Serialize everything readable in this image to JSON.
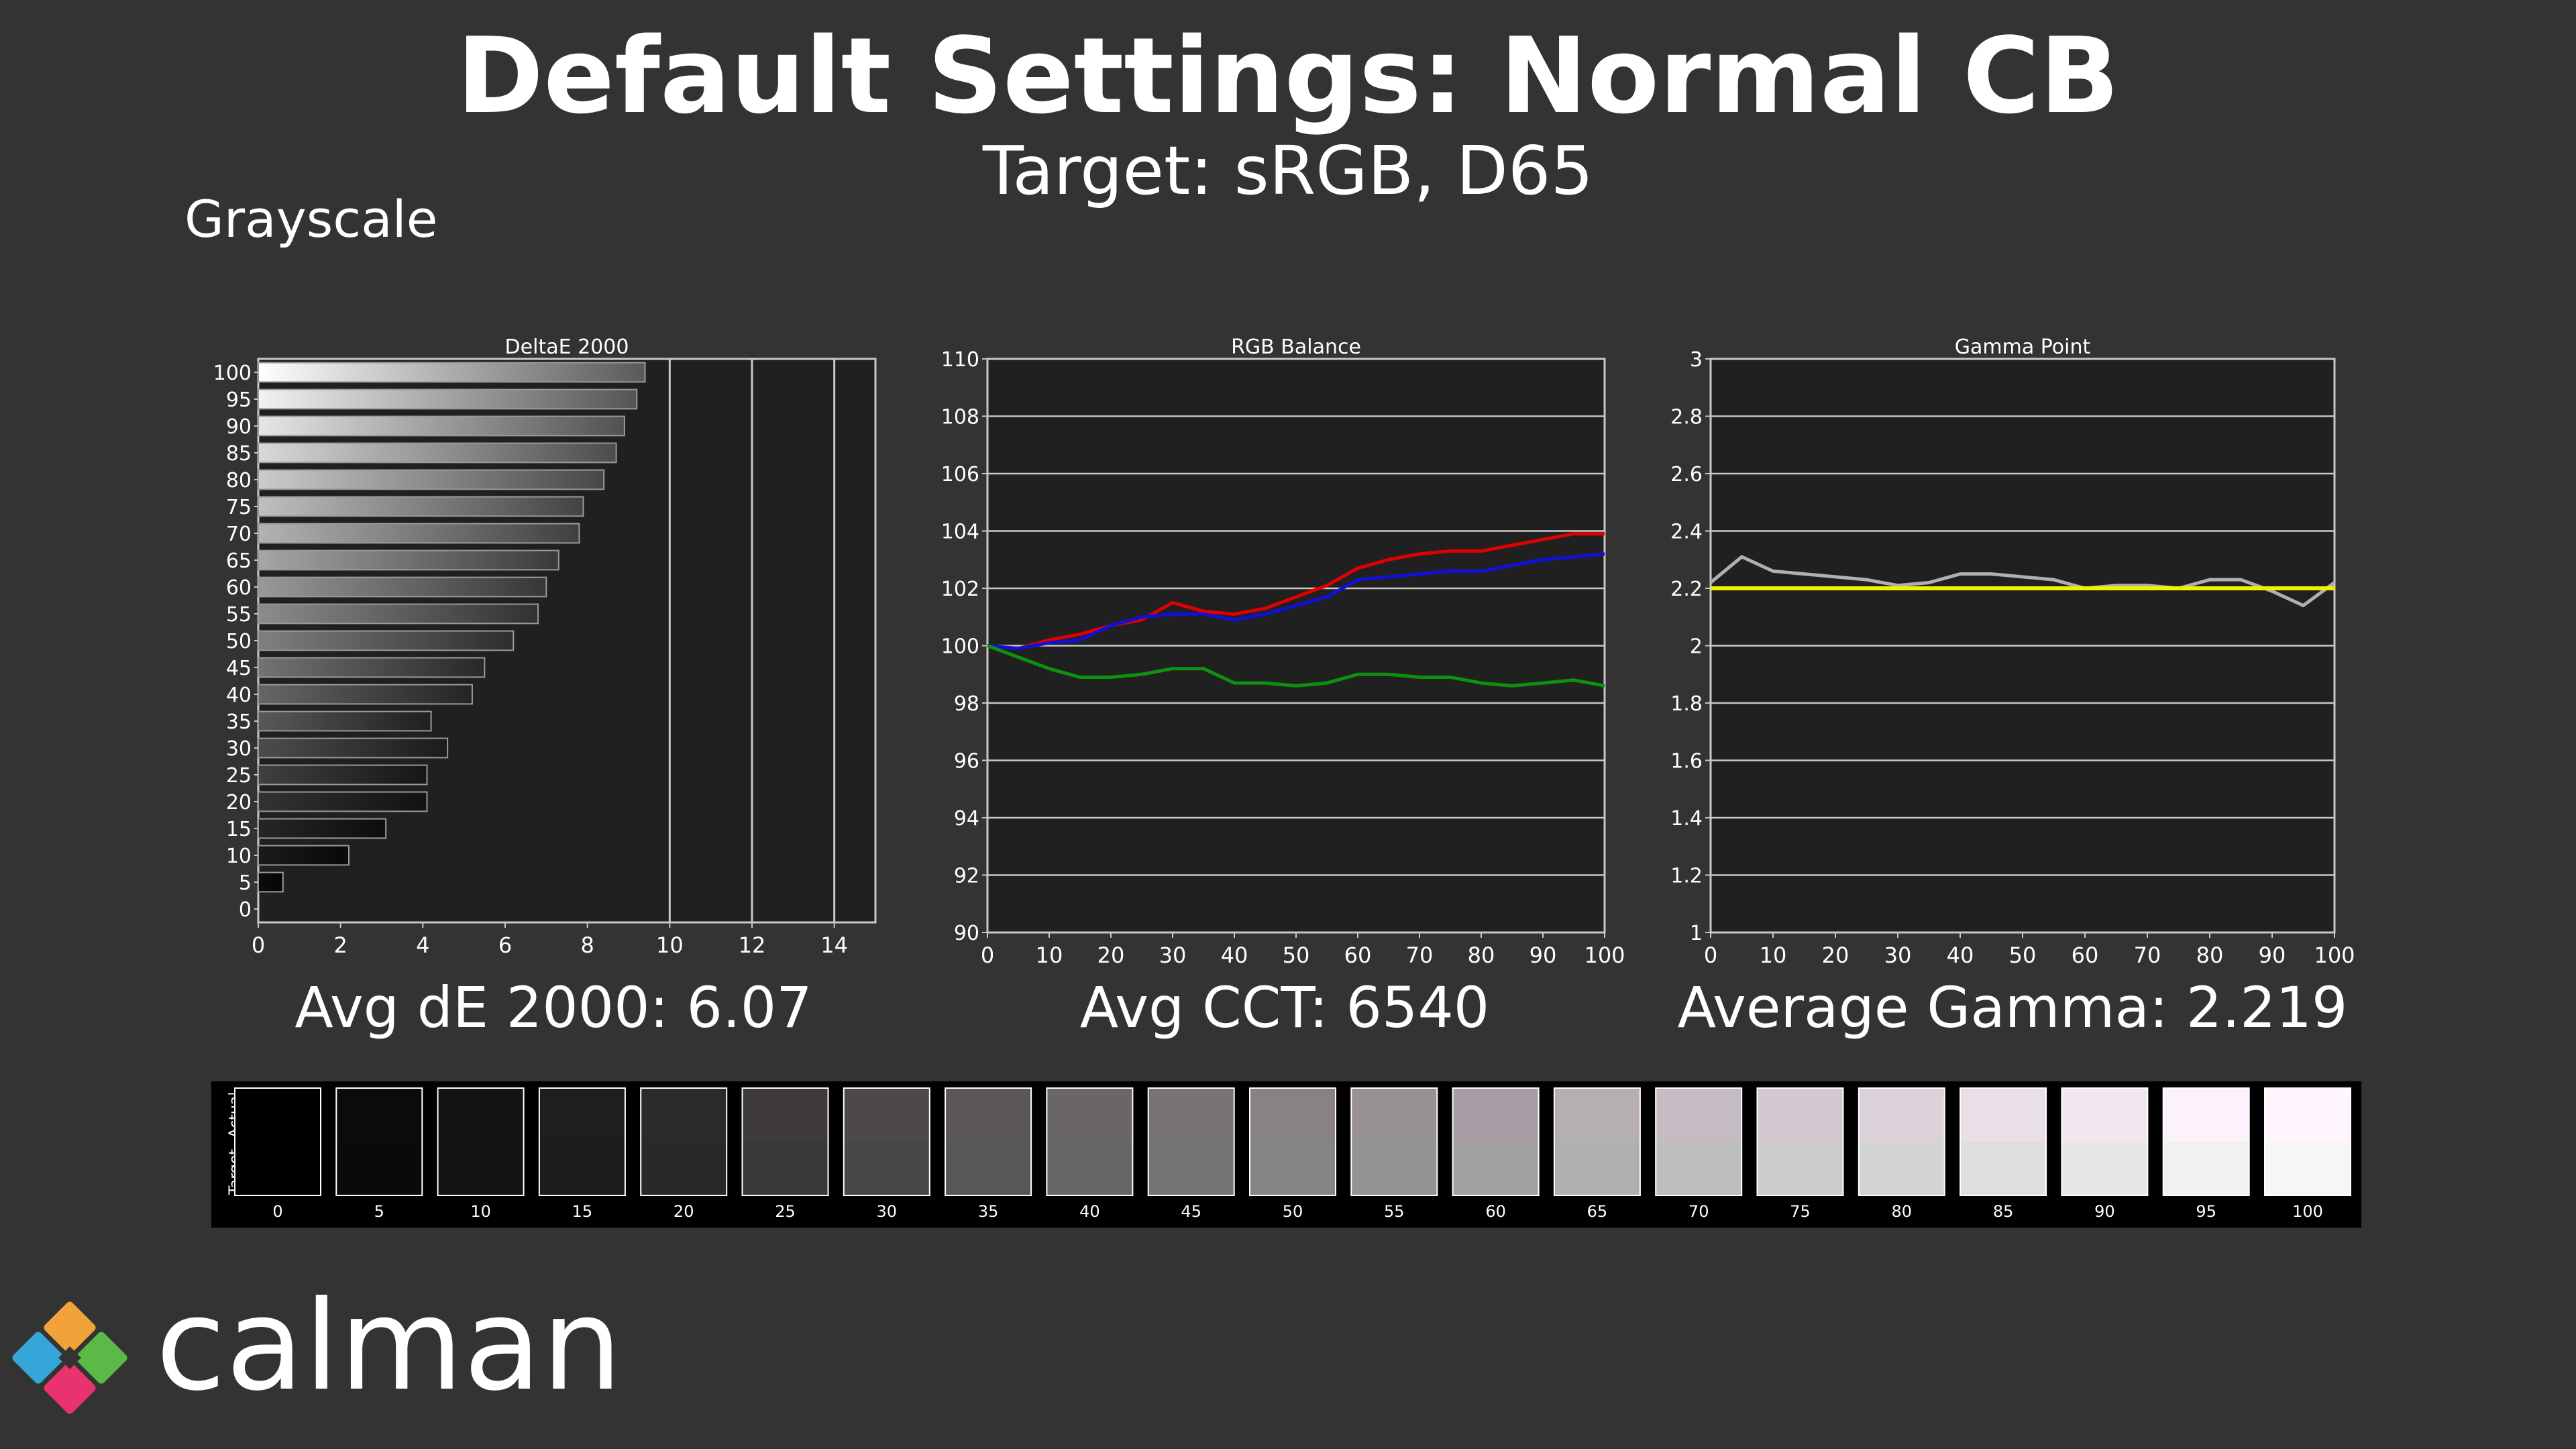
{
  "header": {
    "title": "Default Settings: Normal CB",
    "subtitle": "Target: sRGB, D65",
    "section": "Grayscale"
  },
  "metrics": {
    "avg_de": "Avg dE 2000: 6.07",
    "avg_cct": "Avg CCT: 6540",
    "avg_gamma": "Average Gamma: 2.219"
  },
  "swatches": {
    "actual_label": "Actual",
    "target_label": "Target",
    "levels": [
      "0",
      "5",
      "10",
      "15",
      "20",
      "25",
      "30",
      "35",
      "40",
      "45",
      "50",
      "55",
      "60",
      "65",
      "70",
      "75",
      "80",
      "85",
      "90",
      "95",
      "100"
    ],
    "actual_colors": [
      "#000000",
      "#0b0b0b",
      "#141414",
      "#1e1e1f",
      "#2d2a2d",
      "#3d393d",
      "#4c484b",
      "#5b5759",
      "#6a6568",
      "#797377",
      "#888186",
      "#979095",
      "#a69ea4",
      "#b5aeb3",
      "#c4bcc2",
      "#d3cad1",
      "#dcd2da",
      "#e9dfe7",
      "#f2e6ef",
      "#fcf2fb",
      "#fff5ff"
    ],
    "target_colors": [
      "#000000",
      "#0a0a0a",
      "#131313",
      "#1c1c1c",
      "#292929",
      "#383838",
      "#474747",
      "#575757",
      "#666666",
      "#757575",
      "#858585",
      "#939393",
      "#a2a2a2",
      "#b0b0b0",
      "#bebebe",
      "#cccccc",
      "#d4d4d4",
      "#dedede",
      "#e7e7e7",
      "#f1f1f1",
      "#f6f6f6"
    ]
  },
  "logo": {
    "text": "calman"
  },
  "chart_data": [
    {
      "type": "bar",
      "orientation": "horizontal",
      "title": "DeltaE 2000",
      "categories": [
        "0",
        "5",
        "10",
        "15",
        "20",
        "25",
        "30",
        "35",
        "40",
        "45",
        "50",
        "55",
        "60",
        "65",
        "70",
        "75",
        "80",
        "85",
        "90",
        "95",
        "100"
      ],
      "values": [
        0.0,
        0.6,
        2.2,
        3.1,
        4.1,
        4.1,
        4.6,
        4.2,
        5.2,
        5.5,
        6.2,
        6.8,
        7.0,
        7.3,
        7.8,
        7.9,
        8.4,
        8.7,
        8.9,
        9.2,
        9.4
      ],
      "xlim": [
        0,
        15
      ],
      "xticks": [
        0,
        2,
        4,
        6,
        8,
        10,
        12,
        14
      ],
      "gridlines": [
        10,
        12,
        14
      ]
    },
    {
      "type": "line",
      "title": "RGB Balance",
      "x": [
        0,
        5,
        10,
        15,
        20,
        25,
        30,
        35,
        40,
        45,
        50,
        55,
        60,
        65,
        70,
        75,
        80,
        85,
        90,
        95,
        100
      ],
      "ylim": [
        90,
        110
      ],
      "yticks": [
        90,
        92,
        94,
        96,
        98,
        100,
        102,
        104,
        106,
        108,
        110
      ],
      "xticks": [
        0,
        10,
        20,
        30,
        40,
        50,
        60,
        70,
        80,
        90,
        100
      ],
      "series": [
        {
          "color": "#e00000",
          "values": [
            100.0,
            99.9,
            100.2,
            100.4,
            100.7,
            100.9,
            101.5,
            101.2,
            101.1,
            101.3,
            101.7,
            102.1,
            102.7,
            103.0,
            103.2,
            103.3,
            103.3,
            103.5,
            103.7,
            103.9,
            103.9
          ]
        },
        {
          "color": "#1010d8",
          "values": [
            100.0,
            99.9,
            100.1,
            100.2,
            100.7,
            101.0,
            101.1,
            101.1,
            100.9,
            101.1,
            101.4,
            101.7,
            102.3,
            102.4,
            102.5,
            102.6,
            102.6,
            102.8,
            103.0,
            103.1,
            103.2
          ]
        },
        {
          "color": "#109010",
          "values": [
            100.0,
            99.6,
            99.2,
            98.9,
            98.9,
            99.0,
            99.2,
            99.2,
            98.7,
            98.7,
            98.6,
            98.7,
            99.0,
            99.0,
            98.9,
            98.9,
            98.7,
            98.6,
            98.7,
            98.8,
            98.6
          ]
        }
      ]
    },
    {
      "type": "line",
      "title": "Gamma Point",
      "x": [
        0,
        5,
        10,
        15,
        20,
        25,
        30,
        35,
        40,
        45,
        50,
        55,
        60,
        65,
        70,
        75,
        80,
        85,
        90,
        95,
        100
      ],
      "ylim": [
        1,
        3
      ],
      "yticks": [
        1,
        1.2,
        1.4,
        1.6,
        1.8,
        2,
        2.2,
        2.4,
        2.6,
        2.8,
        3
      ],
      "xticks": [
        0,
        10,
        20,
        30,
        40,
        50,
        60,
        70,
        80,
        90,
        100
      ],
      "series": [
        {
          "color": "#b0b0b0",
          "values": [
            2.22,
            2.31,
            2.26,
            2.25,
            2.24,
            2.23,
            2.21,
            2.22,
            2.25,
            2.25,
            2.24,
            2.23,
            2.2,
            2.21,
            2.21,
            2.2,
            2.23,
            2.23,
            2.19,
            2.14,
            2.22
          ]
        },
        {
          "color": "#f0f000",
          "values": [
            2.2,
            2.2,
            2.2,
            2.2,
            2.2,
            2.2,
            2.2,
            2.2,
            2.2,
            2.2,
            2.2,
            2.2,
            2.2,
            2.2,
            2.2,
            2.2,
            2.2,
            2.2,
            2.2,
            2.2,
            2.2
          ]
        }
      ]
    }
  ]
}
